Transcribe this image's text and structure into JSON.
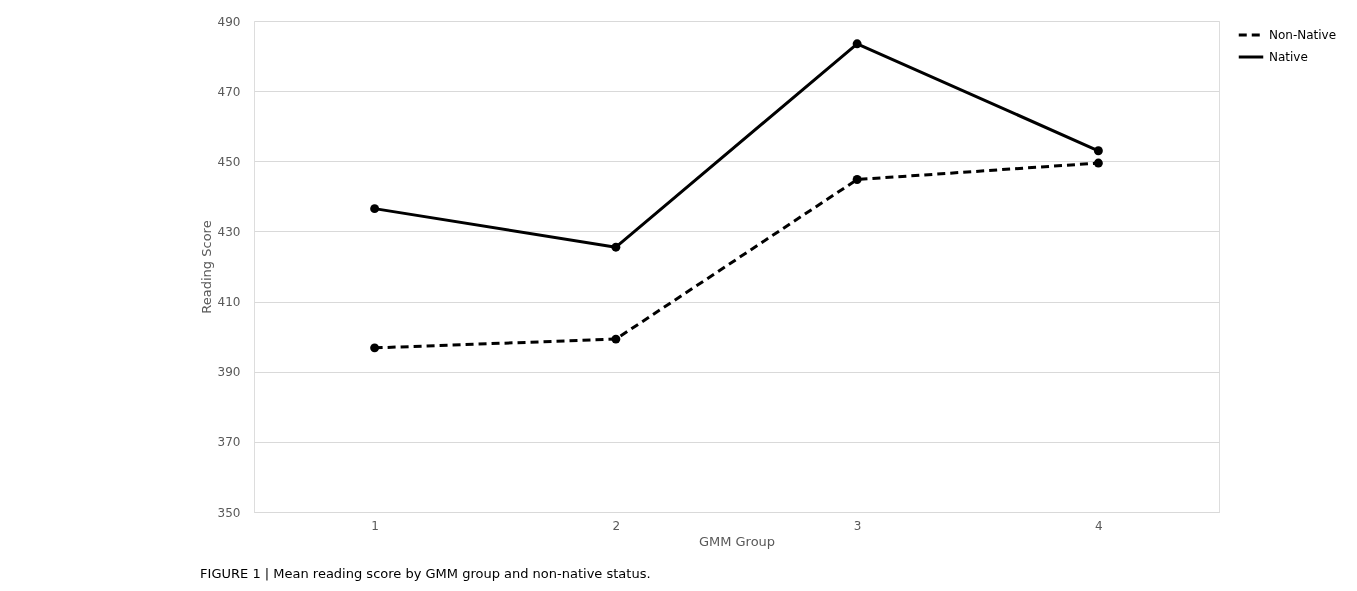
{
  "chart_data": {
    "type": "line",
    "xlabel": "GMM Group",
    "ylabel": "Reading Score",
    "categories": [
      "1",
      "2",
      "3",
      "4"
    ],
    "series": [
      {
        "name": "Non-Native",
        "color": "#000000",
        "line_style": "dashed",
        "values": [
          396.8,
          399.3,
          444.8,
          449.5
        ]
      },
      {
        "name": "Native",
        "color": "#000000",
        "line_style": "solid",
        "values": [
          436.5,
          425.5,
          483.5,
          453.0
        ]
      }
    ],
    "ylim": [
      350,
      490
    ],
    "yticks": [
      350,
      370,
      390,
      410,
      430,
      450,
      470,
      490
    ],
    "grid": "y",
    "legend": "right",
    "marker": "circle",
    "annotations": [
      "FIGURE 1 | Mean reading score by GMM group and non-native status."
    ]
  }
}
